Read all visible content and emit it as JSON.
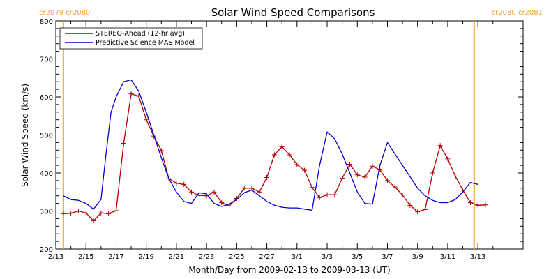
{
  "chart_data": {
    "type": "line",
    "title": "Solar Wind Speed Comparisons",
    "xlabel": "Month/Day from 2009-02-13 to 2009-03-13 (UT)",
    "ylabel": "Solar Wind Speed (km/s)",
    "xlim": [
      "2009-02-13",
      "2009-03-16"
    ],
    "ylim": [
      200,
      800
    ],
    "x_ticks": [
      "2/13",
      "2/15",
      "2/17",
      "2/19",
      "2/21",
      "2/23",
      "2/25",
      "2/27",
      "3/1",
      "3/3",
      "3/5",
      "3/7",
      "3/9",
      "3/11",
      "3/13"
    ],
    "y_ticks": [
      200,
      300,
      400,
      500,
      600,
      700,
      800
    ],
    "legend_position": "top-left",
    "carrington_markers": [
      {
        "label": "cr2079 cr2080",
        "x": "2009-02-13T12:00",
        "color": "#f0a030"
      },
      {
        "label": "cr2080 cr2081",
        "x": "2009-03-12T18:00",
        "color": "#f0a030"
      }
    ],
    "series": [
      {
        "name": "STEREO-Ahead (12-hr avg)",
        "color": "#b00000",
        "marker": "plus",
        "x": [
          "2009-02-13T12:00",
          "2009-02-14T00:00",
          "2009-02-14T12:00",
          "2009-02-15T00:00",
          "2009-02-15T12:00",
          "2009-02-16T00:00",
          "2009-02-16T12:00",
          "2009-02-17T00:00",
          "2009-02-17T12:00",
          "2009-02-18T00:00",
          "2009-02-18T12:00",
          "2009-02-19T00:00",
          "2009-02-19T12:00",
          "2009-02-20T00:00",
          "2009-02-20T12:00",
          "2009-02-21T00:00",
          "2009-02-21T12:00",
          "2009-02-22T00:00",
          "2009-02-22T12:00",
          "2009-02-23T00:00",
          "2009-02-23T12:00",
          "2009-02-24T00:00",
          "2009-02-24T12:00",
          "2009-02-25T00:00",
          "2009-02-25T12:00",
          "2009-02-26T00:00",
          "2009-02-26T12:00",
          "2009-02-27T00:00",
          "2009-02-27T12:00",
          "2009-02-28T00:00",
          "2009-02-28T12:00",
          "2009-03-01T00:00",
          "2009-03-01T12:00",
          "2009-03-02T00:00",
          "2009-03-02T12:00",
          "2009-03-03T00:00",
          "2009-03-03T12:00",
          "2009-03-04T00:00",
          "2009-03-04T12:00",
          "2009-03-05T00:00",
          "2009-03-05T12:00",
          "2009-03-06T00:00",
          "2009-03-06T12:00",
          "2009-03-07T00:00",
          "2009-03-07T12:00",
          "2009-03-08T00:00",
          "2009-03-08T12:00",
          "2009-03-09T00:00",
          "2009-03-09T12:00",
          "2009-03-10T00:00",
          "2009-03-10T12:00",
          "2009-03-11T00:00",
          "2009-03-11T12:00",
          "2009-03-12T00:00",
          "2009-03-12T12:00",
          "2009-03-13T00:00",
          "2009-03-13T12:00"
        ],
        "values": [
          293,
          294,
          300,
          295,
          274,
          295,
          293,
          301,
          478,
          608,
          602,
          540,
          497,
          459,
          385,
          373,
          370,
          350,
          341,
          340,
          350,
          322,
          313,
          333,
          360,
          360,
          350,
          388,
          448,
          469,
          448,
          422,
          407,
          362,
          335,
          343,
          343,
          386,
          423,
          395,
          389,
          418,
          408,
          380,
          363,
          342,
          315,
          298,
          304,
          400,
          472,
          437,
          392,
          355,
          322,
          315,
          316
        ]
      },
      {
        "name": "Predictive Science MAS Model",
        "color": "#0000cc",
        "marker": "none",
        "x": [
          "2009-02-13T12:00",
          "2009-02-14T00:00",
          "2009-02-14T12:00",
          "2009-02-15T00:00",
          "2009-02-15T12:00",
          "2009-02-16T00:00",
          "2009-02-16T08:00",
          "2009-02-16T16:00",
          "2009-02-17T00:00",
          "2009-02-17T12:00",
          "2009-02-18T00:00",
          "2009-02-18T12:00",
          "2009-02-19T00:00",
          "2009-02-19T12:00",
          "2009-02-20T00:00",
          "2009-02-20T12:00",
          "2009-02-21T00:00",
          "2009-02-21T12:00",
          "2009-02-22T00:00",
          "2009-02-22T12:00",
          "2009-02-23T00:00",
          "2009-02-23T12:00",
          "2009-02-24T00:00",
          "2009-02-24T12:00",
          "2009-02-25T00:00",
          "2009-02-25T12:00",
          "2009-02-26T00:00",
          "2009-02-26T12:00",
          "2009-02-27T00:00",
          "2009-02-27T12:00",
          "2009-02-28T00:00",
          "2009-02-28T12:00",
          "2009-03-01T00:00",
          "2009-03-01T12:00",
          "2009-03-02T00:00",
          "2009-03-02T12:00",
          "2009-03-03T00:00",
          "2009-03-03T12:00",
          "2009-03-04T00:00",
          "2009-03-04T12:00",
          "2009-03-05T00:00",
          "2009-03-05T12:00",
          "2009-03-06T00:00",
          "2009-03-06T12:00",
          "2009-03-07T00:00",
          "2009-03-07T12:00",
          "2009-03-08T00:00",
          "2009-03-08T12:00",
          "2009-03-09T00:00",
          "2009-03-09T12:00",
          "2009-03-10T00:00",
          "2009-03-10T12:00",
          "2009-03-11T00:00",
          "2009-03-11T12:00",
          "2009-03-12T00:00",
          "2009-03-12T12:00",
          "2009-03-13T00:00"
        ],
        "values": [
          340,
          330,
          328,
          320,
          305,
          330,
          450,
          560,
          600,
          640,
          645,
          615,
          560,
          500,
          440,
          385,
          350,
          325,
          320,
          348,
          345,
          320,
          312,
          318,
          330,
          348,
          355,
          340,
          325,
          315,
          310,
          308,
          308,
          305,
          302,
          420,
          508,
          490,
          450,
          400,
          350,
          320,
          318,
          420,
          480,
          450,
          420,
          390,
          360,
          340,
          328,
          322,
          322,
          330,
          350,
          375,
          370
        ]
      }
    ]
  }
}
